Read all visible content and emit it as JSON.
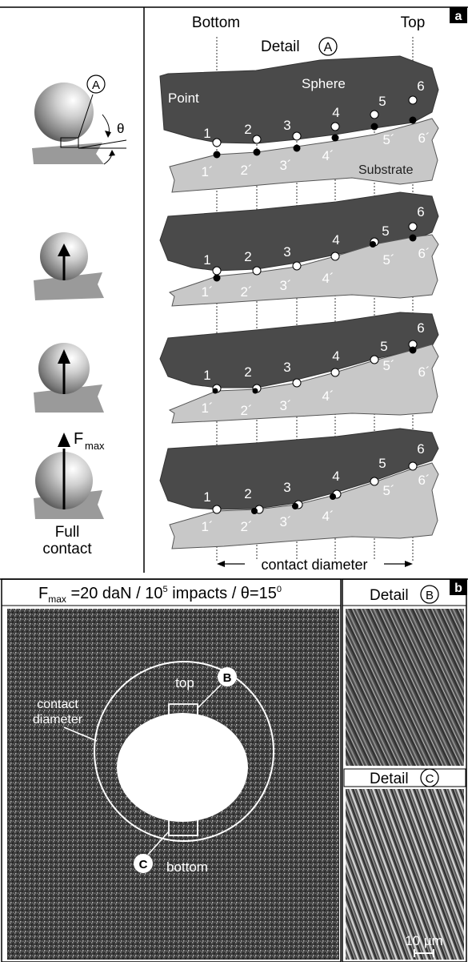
{
  "panel_a": {
    "label": "a",
    "header": {
      "bottom": "Bottom",
      "top": "Top",
      "detail": "Detail",
      "detail_marker": "A"
    },
    "left_labels": {
      "theta": "θ",
      "circle_a": "A",
      "fmax_f": "F",
      "fmax_sub": "max",
      "full": "Full",
      "contact": "contact"
    },
    "sphere_labels": {
      "point": "Point",
      "sphere": "Sphere",
      "substrate": "Substrate"
    },
    "point_labels": [
      "1",
      "2",
      "3",
      "4",
      "5",
      "6"
    ],
    "prime_labels": [
      "1´",
      "2´",
      "3´",
      "4´",
      "5´",
      "6´"
    ],
    "contact_diameter": "contact diameter"
  },
  "panel_b": {
    "label": "b",
    "title_pre": "F",
    "title_sub": "max",
    "title_mid": " =20 daN / 10",
    "title_sup": "5",
    "title_mid2": " impacts / θ=15",
    "title_deg": "0",
    "detail_b": "Detail",
    "detail_b_marker": "B",
    "detail_c": "Detail",
    "detail_c_marker": "C",
    "top": "top",
    "bottom": "bottom",
    "contact_diameter_1": "contact",
    "contact_diameter_2": "diameter",
    "marker_b": "B",
    "marker_c": "C",
    "scale": "10 µm"
  }
}
